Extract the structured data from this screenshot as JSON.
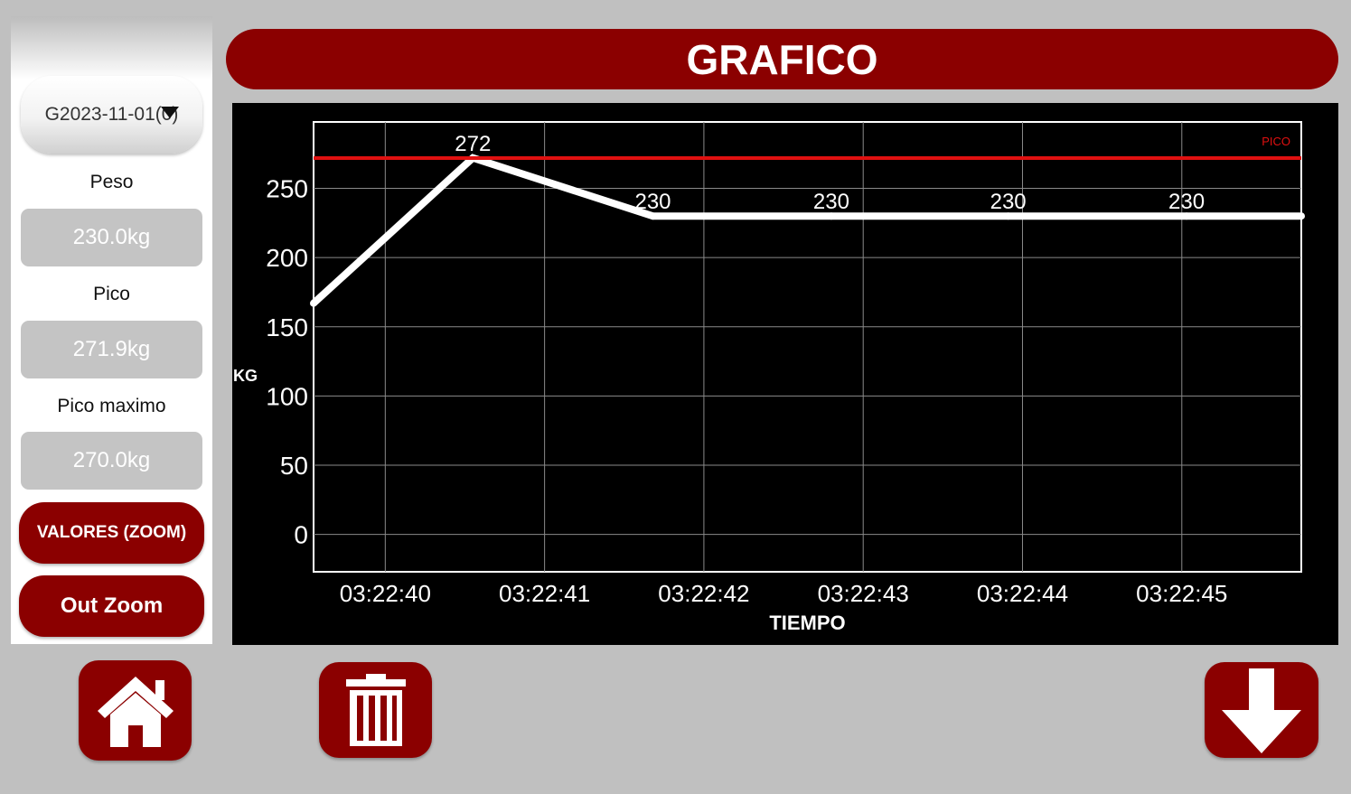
{
  "sidebar": {
    "file_select": {
      "value": "G2023-11-01(0)"
    },
    "peso": {
      "label": "Peso",
      "value": "230.0kg"
    },
    "pico": {
      "label": "Pico",
      "value": "271.9kg"
    },
    "pico_maximo": {
      "label": "Pico maximo",
      "value": "270.0kg"
    },
    "zoom_button": "VALORES (ZOOM)",
    "out_zoom_button": "Out Zoom"
  },
  "header": {
    "title": "GRAFICO"
  },
  "chart_data": {
    "type": "line",
    "x": [
      "03:22:39.55",
      "03:22:40.55",
      "03:22:41.68",
      "03:22:42.8",
      "03:22:43.91",
      "03:22:45.03",
      "03:22:45.75"
    ],
    "series": [
      {
        "values": [
          167,
          272,
          230,
          230,
          230,
          230,
          230
        ]
      }
    ],
    "data_labels": [
      {
        "x": "03:22:40.55",
        "text": "272"
      },
      {
        "x": "03:22:41.68",
        "text": "230"
      },
      {
        "x": "03:22:42.8",
        "text": "230"
      },
      {
        "x": "03:22:43.91",
        "text": "230"
      },
      {
        "x": "03:22:45.03",
        "text": "230"
      }
    ],
    "reference_line": {
      "label": "PICO",
      "value": 271.9,
      "color": "#e01010"
    },
    "x_ticks": [
      "03:22:40",
      "03:22:41",
      "03:22:42",
      "03:22:43",
      "03:22:44",
      "03:22:45"
    ],
    "y_ticks": [
      0,
      50,
      100,
      150,
      200,
      250
    ],
    "xlabel": "TIEMPO",
    "ylabel": "KG",
    "ylim": [
      -27,
      298
    ],
    "xlim": [
      "03:22:39.55",
      "03:22:45.75"
    ],
    "grid": true,
    "line_color": "#ffffff",
    "background": "#000000"
  },
  "bottom": {
    "home_icon": "home-icon",
    "delete_icon": "trash-icon",
    "download_icon": "arrow-down-icon"
  },
  "colors": {
    "accent": "#8b0000",
    "background": "#c0c0c0"
  }
}
